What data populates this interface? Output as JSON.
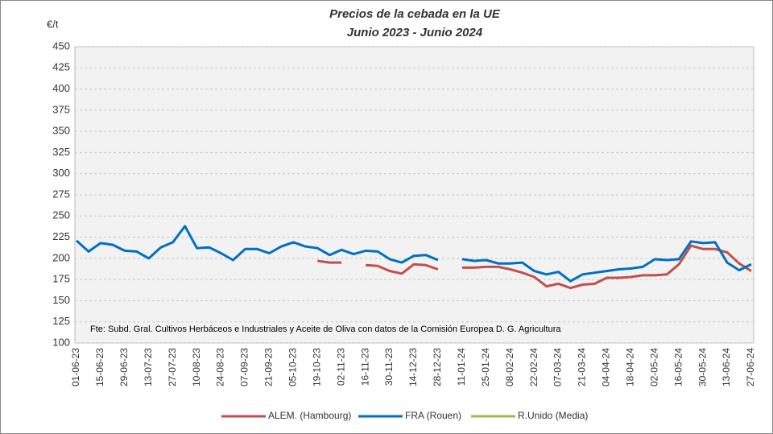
{
  "chart_data": {
    "type": "line",
    "title": "Precios de la cebada en la UE",
    "subtitle": "Junio 2023 - Junio 2024",
    "y_label": "€/t",
    "note": "Fte: Subd. Gral. Cultivos Herbáceos e Industriales y Aceite de Oliva con datos de la Comisión Europea D. G. Agricultura",
    "categories": [
      "01-06-23",
      null,
      "15-06-23",
      null,
      "29-06-23",
      null,
      "13-07-23",
      null,
      "27-07-23",
      null,
      "10-08-23",
      null,
      "24-08-23",
      null,
      "07-09-23",
      null,
      "21-09-23",
      null,
      "05-10-23",
      null,
      "19-10-23",
      null,
      "02-11-23",
      null,
      "16-11-23",
      null,
      "30-11-23",
      null,
      "14-12-23",
      null,
      "28-12-23",
      null,
      "11-01-24",
      null,
      "25-01-24",
      null,
      "08-02-24",
      null,
      "22-02-24",
      null,
      "07-03-24",
      null,
      "21-03-24",
      null,
      "04-04-24",
      null,
      "18-04-24",
      null,
      "02-05-24",
      null,
      "16-05-24",
      null,
      "30-05-24",
      null,
      "13-06-24",
      null,
      "27-06-24"
    ],
    "series": [
      {
        "name": "ALEM. (Hambourg)",
        "color": "#c0504d",
        "values": [
          null,
          null,
          null,
          null,
          null,
          null,
          null,
          null,
          null,
          null,
          null,
          null,
          null,
          null,
          null,
          null,
          null,
          null,
          null,
          null,
          197,
          195,
          195,
          null,
          192,
          191,
          185,
          182,
          193,
          192,
          187,
          null,
          189,
          189,
          190,
          190,
          187,
          183,
          178,
          167,
          170,
          165,
          169,
          170,
          177,
          177,
          178,
          180,
          180,
          181,
          193,
          215,
          211,
          211,
          207,
          194,
          185
        ]
      },
      {
        "name": "FRA (Rouen)",
        "color": "#0070c0",
        "values": [
          221,
          208,
          218,
          216,
          209,
          208,
          200,
          213,
          219,
          238,
          212,
          213,
          206,
          198,
          211,
          211,
          206,
          214,
          219,
          214,
          212,
          204,
          210,
          205,
          209,
          208,
          199,
          195,
          203,
          204,
          198,
          null,
          199,
          197,
          198,
          194,
          194,
          195,
          185,
          181,
          184,
          173,
          181,
          183,
          185,
          187,
          188,
          190,
          199,
          198,
          199,
          220,
          218,
          219,
          195,
          186,
          193
        ]
      },
      {
        "name": "R.Unido (Media)",
        "color": "#9bbb59",
        "values": [
          null,
          null,
          null,
          null,
          null,
          null,
          null,
          null,
          null,
          null,
          null,
          null,
          null,
          null,
          null,
          null,
          null,
          null,
          null,
          null,
          null,
          null,
          null,
          null,
          null,
          null,
          null,
          null,
          null,
          null,
          null,
          null,
          null,
          null,
          null,
          null,
          null,
          null,
          null,
          null,
          null,
          null,
          null,
          null,
          null,
          null,
          null,
          null,
          null,
          null,
          null,
          null,
          null,
          null,
          null,
          null,
          null
        ]
      }
    ],
    "ylim": [
      100,
      450
    ],
    "yticks": [
      100,
      125,
      150,
      175,
      200,
      225,
      250,
      275,
      300,
      325,
      350,
      375,
      400,
      425,
      450
    ],
    "grid": true
  }
}
